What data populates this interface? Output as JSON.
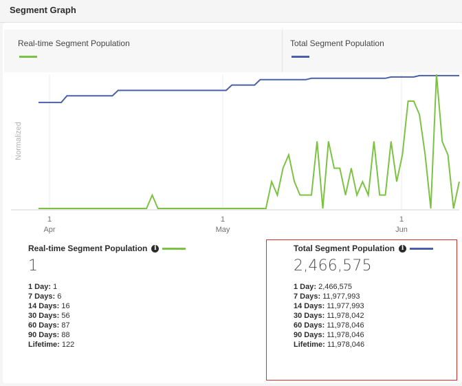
{
  "header": {
    "title": "Segment Graph"
  },
  "legend": [
    {
      "label": "Real-time Segment Population",
      "color": "#7cc242"
    },
    {
      "label": "Total Segment Population",
      "color": "#4a5fa8"
    }
  ],
  "chart_data": {
    "type": "line",
    "ylabel": "Normalized",
    "x_ticks": [
      {
        "day": "1",
        "month": "Apr"
      },
      {
        "day": "1",
        "month": "May"
      },
      {
        "day": "1",
        "month": "Jun"
      }
    ],
    "series": [
      {
        "name": "Total Segment Population",
        "color": "#4a5fa8",
        "values": [
          0.79,
          0.79,
          0.79,
          0.79,
          0.79,
          0.84,
          0.84,
          0.84,
          0.84,
          0.84,
          0.84,
          0.84,
          0.84,
          0.84,
          0.88,
          0.88,
          0.88,
          0.88,
          0.88,
          0.88,
          0.88,
          0.88,
          0.88,
          0.88,
          0.88,
          0.88,
          0.88,
          0.88,
          0.88,
          0.88,
          0.88,
          0.88,
          0.88,
          0.88,
          0.92,
          0.92,
          0.92,
          0.92,
          0.92,
          0.96,
          0.96,
          0.96,
          0.96,
          0.96,
          0.96,
          0.96,
          0.96,
          0.96,
          0.97,
          0.97,
          0.97,
          0.97,
          0.97,
          0.97,
          0.97,
          0.97,
          0.97,
          0.97,
          0.97,
          0.97,
          0.97,
          0.97,
          0.98,
          0.98,
          0.98,
          0.98,
          0.98,
          0.99,
          0.99,
          0.99,
          0.99,
          0.99,
          0.99,
          0.99,
          0.99
        ]
      },
      {
        "name": "Real-time Segment Population",
        "color": "#7cc242",
        "values": [
          0,
          0,
          0,
          0,
          0,
          0,
          0,
          0,
          0,
          0,
          0,
          0,
          0,
          0,
          0,
          0,
          0,
          0,
          0,
          0,
          0.1,
          0,
          0,
          0,
          0,
          0,
          0,
          0,
          0,
          0,
          0,
          0,
          0,
          0,
          0,
          0,
          0,
          0,
          0,
          0,
          0,
          0.2,
          0.1,
          0.3,
          0.4,
          0.2,
          0.1,
          0.1,
          0.1,
          0.5,
          0,
          0.5,
          0.3,
          0.3,
          0.1,
          0.3,
          0.1,
          0.2,
          0.1,
          0.5,
          0.1,
          0.1,
          0.5,
          0.2,
          0.4,
          0.8,
          0.8,
          0.7,
          0.4,
          0,
          1.0,
          0.5,
          0.4,
          0,
          0.2
        ]
      }
    ]
  },
  "stats": [
    {
      "title": "Real-time Segment Population",
      "color": "#7cc242",
      "value": "1",
      "rows": [
        {
          "label": "1 Day:",
          "value": "1"
        },
        {
          "label": "7 Days:",
          "value": "6"
        },
        {
          "label": "14 Days:",
          "value": "16"
        },
        {
          "label": "30 Days:",
          "value": "56"
        },
        {
          "label": "60 Days:",
          "value": "87"
        },
        {
          "label": "90 Days:",
          "value": "88"
        },
        {
          "label": "Lifetime:",
          "value": "122"
        }
      ]
    },
    {
      "title": "Total Segment Population",
      "color": "#4a5fa8",
      "value": "2,466,575",
      "rows": [
        {
          "label": "1 Day:",
          "value": "2,466,575"
        },
        {
          "label": "7 Days:",
          "value": "11,977,993"
        },
        {
          "label": "14 Days:",
          "value": "11,977,993"
        },
        {
          "label": "30 Days:",
          "value": "11,978,042"
        },
        {
          "label": "60 Days:",
          "value": "11,978,046"
        },
        {
          "label": "90 Days:",
          "value": "11,978,046"
        },
        {
          "label": "Lifetime:",
          "value": "11,978,046"
        }
      ]
    }
  ]
}
